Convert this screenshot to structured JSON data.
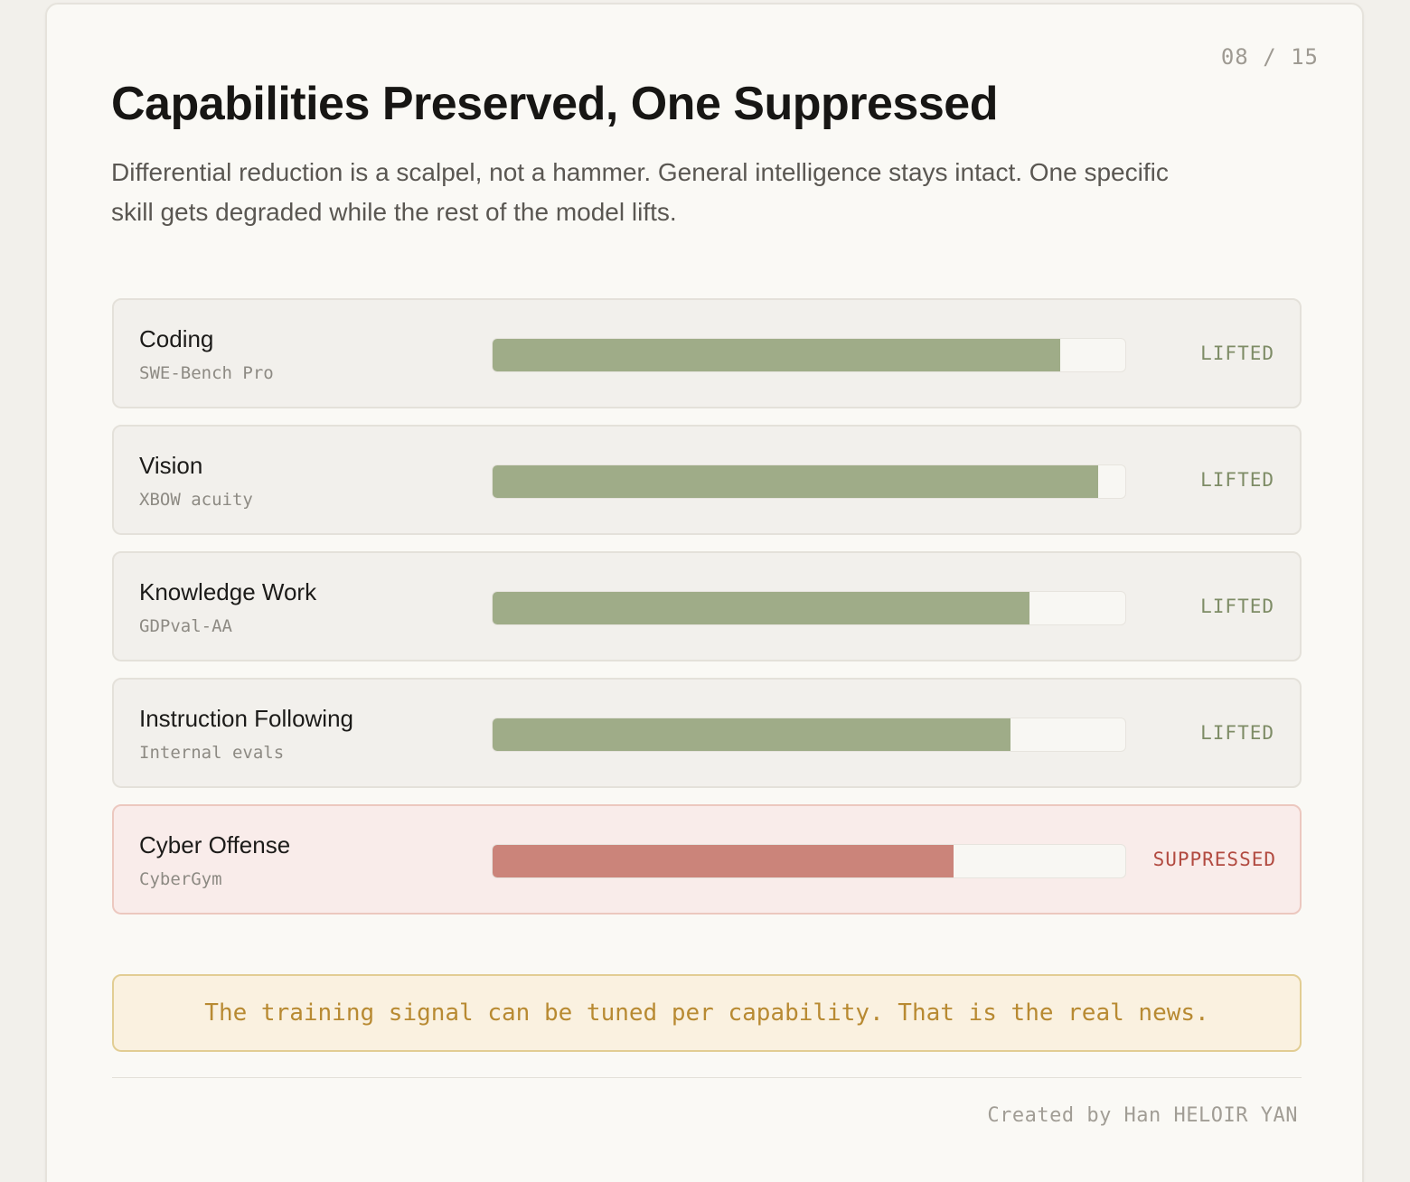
{
  "header": {
    "page_indicator": "08 / 15",
    "title": "Capabilities Preserved, One Suppressed",
    "subtitle": "Differential reduction is a scalpel, not a hammer. General intelligence stays intact. One specific skill gets degraded while the rest of the model lifts."
  },
  "capabilities": [
    {
      "name": "Coding",
      "benchmark": "SWE-Bench Pro",
      "level": 0.897,
      "status": "LIFTED",
      "kind": "lifted"
    },
    {
      "name": "Vision",
      "benchmark": "XBOW acuity",
      "level": 0.957,
      "status": "LIFTED",
      "kind": "lifted"
    },
    {
      "name": "Knowledge Work",
      "benchmark": "GDPval-AA",
      "level": 0.849,
      "status": "LIFTED",
      "kind": "lifted"
    },
    {
      "name": "Instruction Following",
      "benchmark": "Internal evals",
      "level": 0.818,
      "status": "LIFTED",
      "kind": "lifted"
    },
    {
      "name": "Cyber Offense",
      "benchmark": "CyberGym",
      "level": 0.729,
      "status": "SUPPRESSED",
      "kind": "suppressed"
    }
  ],
  "colors": {
    "lifted_fill": "#9fac88",
    "suppressed_fill": "#cb847a",
    "lifted_text": "#7e8c66",
    "suppressed_text": "#b24a40"
  },
  "note": "The training signal can be tuned per capability. That is the real news.",
  "footer": "Created by Han HELOIR YAN"
}
